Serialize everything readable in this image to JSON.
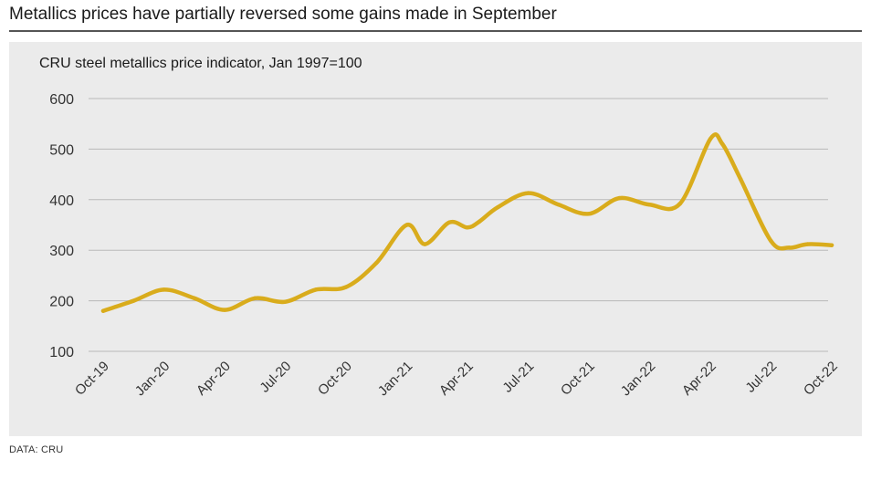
{
  "headline": "Metallics prices have partially reversed some gains made in September",
  "source": "DATA: CRU",
  "colors": {
    "line": "#d9ac1c",
    "grid": "#b9b9b9",
    "panel": "#ebebeb"
  },
  "chart_data": {
    "type": "line",
    "title": "CRU steel metallics price indicator, Jan 1997=100",
    "xlabel": "",
    "ylabel": "",
    "ylim": [
      100,
      600
    ],
    "yticks": [
      100,
      200,
      300,
      400,
      500,
      600
    ],
    "xtick_labels": [
      "Oct-19",
      "Jan-20",
      "Apr-20",
      "Jul-20",
      "Oct-20",
      "Jan-21",
      "Apr-21",
      "Jul-21",
      "Oct-21",
      "Jan-22",
      "Apr-22",
      "Jul-22",
      "Oct-22"
    ],
    "series": [
      {
        "name": "CRU steel metallics price indicator",
        "x": [
          0,
          0.5,
          1,
          1.5,
          2,
          2.5,
          3,
          3.5,
          4,
          4.5,
          5,
          5.3,
          5.7,
          6,
          6.2,
          6.5,
          7,
          7.5,
          8,
          8.5,
          9,
          9.5,
          10,
          10.2,
          10.5,
          11,
          11.3,
          11.6,
          12
        ],
        "values": [
          180,
          200,
          222,
          205,
          182,
          205,
          198,
          222,
          227,
          275,
          350,
          312,
          355,
          345,
          357,
          385,
          413,
          390,
          372,
          403,
          390,
          392,
          520,
          510,
          440,
          318,
          305,
          312,
          310
        ]
      }
    ]
  }
}
